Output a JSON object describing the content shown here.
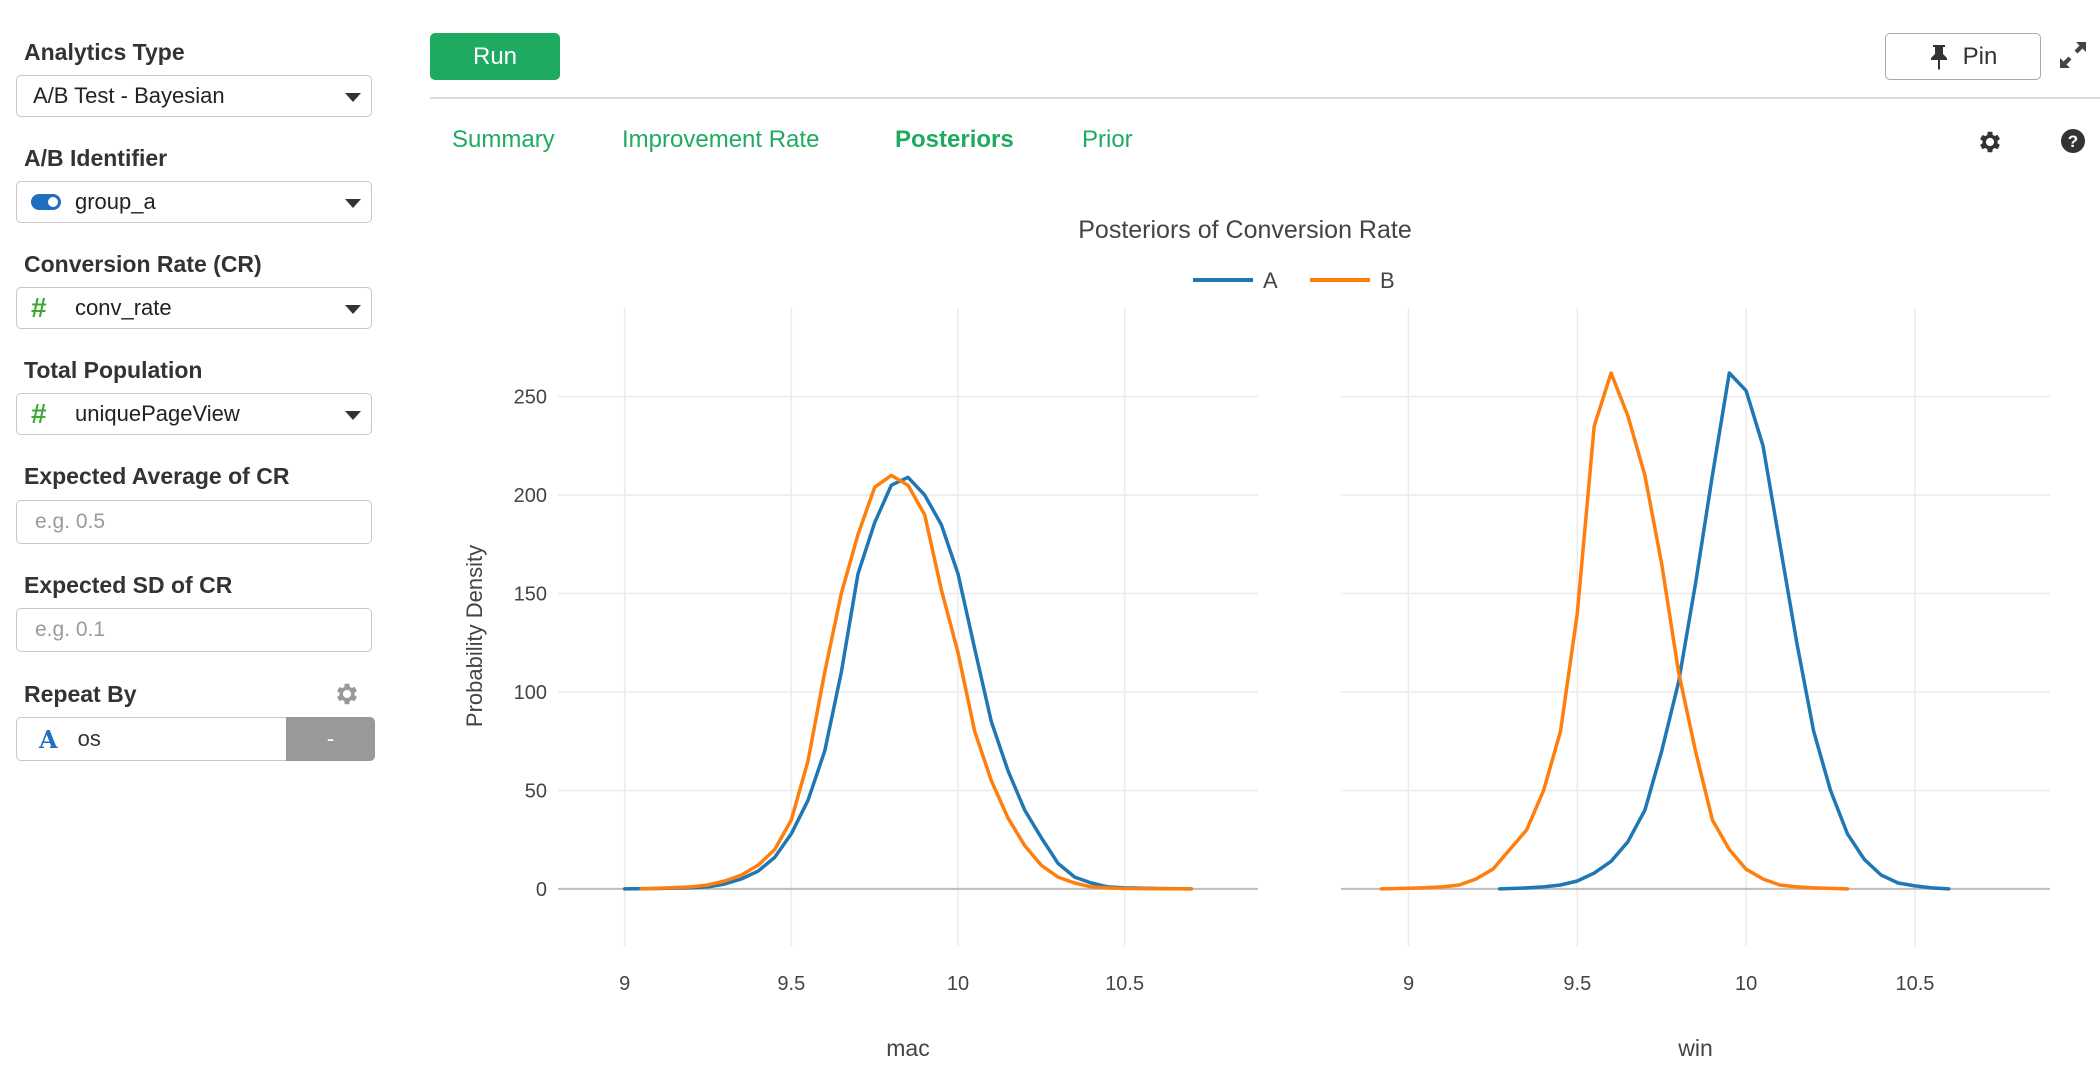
{
  "sidebar": {
    "analytics_type": {
      "label": "Analytics Type",
      "value": "A/B Test - Bayesian"
    },
    "ab_identifier": {
      "label": "A/B Identifier",
      "value": "group_a",
      "icon": "toggle-icon"
    },
    "conversion_rate": {
      "label": "Conversion Rate (CR)",
      "value": "conv_rate",
      "icon": "hash-icon",
      "icon_glyph": "#"
    },
    "total_population": {
      "label": "Total Population",
      "value": "uniquePageView",
      "icon": "hash-icon",
      "icon_glyph": "#"
    },
    "expected_average": {
      "label": "Expected Average of CR",
      "placeholder": "e.g. 0.5"
    },
    "expected_sd": {
      "label": "Expected SD of CR",
      "placeholder": "e.g. 0.1"
    },
    "repeat_by": {
      "label": "Repeat By",
      "value": "os",
      "icon_glyph": "A",
      "remove_label": "-"
    }
  },
  "toolbar": {
    "run_label": "Run",
    "pin_label": "Pin"
  },
  "tabs": [
    {
      "label": "Summary",
      "active": false
    },
    {
      "label": "Improvement Rate",
      "active": false
    },
    {
      "label": "Posteriors",
      "active": true
    },
    {
      "label": "Prior",
      "active": false
    }
  ],
  "colors": {
    "accent": "#1eab61",
    "series_a": "#1f77b4",
    "series_b": "#ff7f0e"
  },
  "chart_data": {
    "type": "line",
    "title": "Posteriors of Conversion Rate",
    "ylabel": "Probability Density",
    "legend": {
      "placement": "top-center",
      "entries": [
        "A",
        "B"
      ]
    },
    "grid": true,
    "ylim": [
      -29,
      295
    ],
    "yticks": [
      0,
      50,
      100,
      150,
      200,
      250
    ],
    "panels": [
      {
        "xlabel": "mac",
        "xlim": [
          8.8,
          10.9
        ],
        "xticks": [
          9,
          9.5,
          10,
          10.5
        ],
        "series": [
          {
            "name": "A",
            "x": [
              9.0,
              9.1,
              9.2,
              9.25,
              9.3,
              9.35,
              9.4,
              9.45,
              9.5,
              9.55,
              9.6,
              9.65,
              9.7,
              9.75,
              9.8,
              9.85,
              9.9,
              9.95,
              10.0,
              10.05,
              10.1,
              10.15,
              10.2,
              10.25,
              10.3,
              10.35,
              10.4,
              10.45,
              10.5,
              10.6,
              10.7
            ],
            "y": [
              0,
              0.2,
              0.6,
              1,
              2.5,
              5,
              9,
              16,
              28,
              45,
              70,
              110,
              160,
              186,
              205,
              209,
              200,
              185,
              160,
              122,
              85,
              60,
              40,
              26,
              13,
              6,
              3,
              1,
              0.5,
              0.2,
              0
            ]
          },
          {
            "name": "B",
            "x": [
              9.05,
              9.1,
              9.2,
              9.25,
              9.3,
              9.35,
              9.4,
              9.45,
              9.5,
              9.55,
              9.6,
              9.65,
              9.7,
              9.75,
              9.8,
              9.85,
              9.9,
              9.95,
              10.0,
              10.05,
              10.1,
              10.15,
              10.2,
              10.25,
              10.3,
              10.35,
              10.4,
              10.45,
              10.5,
              10.6,
              10.7
            ],
            "y": [
              0,
              0.3,
              1,
              2,
              4,
              7,
              12,
              20,
              35,
              65,
              110,
              150,
              180,
              204,
              210,
              205,
              190,
              152,
              120,
              80,
              55,
              36,
              22,
              12,
              6,
              3,
              1,
              0.5,
              0.2,
              0.1,
              0
            ]
          }
        ]
      },
      {
        "xlabel": "win",
        "xlim": [
          8.8,
          10.9
        ],
        "xticks": [
          9,
          9.5,
          10,
          10.5
        ],
        "series": [
          {
            "name": "A",
            "x": [
              9.27,
              9.35,
              9.4,
              9.45,
              9.5,
              9.55,
              9.6,
              9.65,
              9.7,
              9.75,
              9.8,
              9.85,
              9.9,
              9.95,
              10.0,
              10.05,
              10.1,
              10.15,
              10.2,
              10.25,
              10.3,
              10.35,
              10.4,
              10.45,
              10.5,
              10.55,
              10.6
            ],
            "y": [
              0,
              0.5,
              1,
              2,
              4,
              8,
              14,
              24,
              40,
              70,
              105,
              155,
              210,
              262,
              253,
              225,
              175,
              125,
              80,
              50,
              28,
              15,
              7,
              3,
              1.5,
              0.5,
              0
            ]
          },
          {
            "name": "B",
            "x": [
              8.92,
              9.0,
              9.05,
              9.1,
              9.15,
              9.2,
              9.25,
              9.3,
              9.35,
              9.4,
              9.45,
              9.5,
              9.55,
              9.6,
              9.65,
              9.7,
              9.75,
              9.8,
              9.85,
              9.9,
              9.95,
              10.0,
              10.05,
              10.1,
              10.15,
              10.2,
              10.3
            ],
            "y": [
              0,
              0.3,
              0.6,
              1,
              2,
              5,
              10,
              20,
              30,
              50,
              80,
              140,
              235,
              262,
              240,
              210,
              165,
              110,
              70,
              35,
              20,
              10,
              5,
              2,
              1,
              0.5,
              0
            ]
          }
        ]
      }
    ]
  }
}
